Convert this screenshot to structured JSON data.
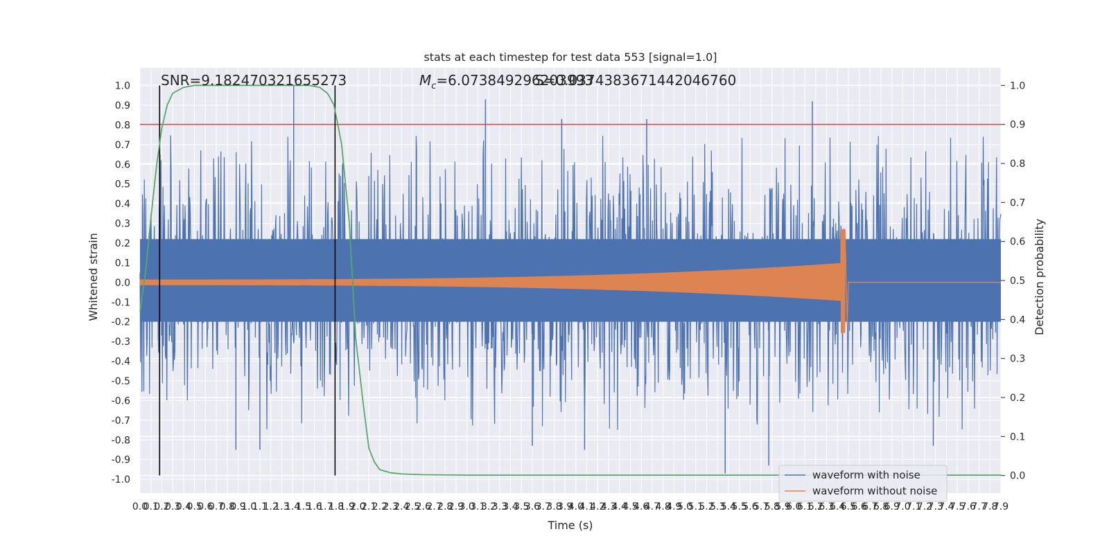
{
  "chart_data": {
    "type": "line",
    "title": "stats at each timestep for test data 553 [signal=1.0]",
    "xlabel": "Time (s)",
    "ylabel_left": "Whitened strain",
    "ylabel_right": "Detection probability",
    "xlim": [
      0.0,
      7.9
    ],
    "ylim_left": [
      -1.07,
      1.09
    ],
    "ylim_right": [
      -0.045,
      1.045
    ],
    "x_tick_step": 0.1,
    "x_tick_count": 80,
    "y_left_ticks": [
      "-1.0",
      "-0.9",
      "-0.8",
      "-0.7",
      "-0.6",
      "-0.5",
      "-0.4",
      "-0.3",
      "-0.2",
      "-0.1",
      "0.0",
      "0.1",
      "0.2",
      "0.3",
      "0.4",
      "0.5",
      "0.6",
      "0.7",
      "0.8",
      "0.9",
      "1.0"
    ],
    "y_right_ticks": [
      "0.0",
      "0.1",
      "0.2",
      "0.3",
      "0.4",
      "0.5",
      "0.6",
      "0.7",
      "0.8",
      "0.9",
      "1.0"
    ],
    "annotations": {
      "snr": "SNR=9.182470321655273",
      "mc_symbol": "M",
      "mc_subscript": "c",
      "mc_value": "=6.073849296203993",
      "overlap": "S=0.0374383671442046760"
    },
    "threshold_line": {
      "axis": "right",
      "value": 0.9,
      "color": "#c44e52"
    },
    "detection_window": {
      "x_start": 0.18,
      "x_end": 1.79,
      "color": "#000000"
    },
    "series": [
      {
        "name": "waveform with noise",
        "axis": "left",
        "color": "#4c72b0",
        "x_range": [
          0.0,
          7.9
        ],
        "noise_level": 0.26,
        "spikes": [
          {
            "x": 1.41,
            "y": 1.0
          },
          {
            "x": 3.17,
            "y": 0.93
          },
          {
            "x": 6.17,
            "y": 0.92
          },
          {
            "x": 3.87,
            "y": 0.83
          },
          {
            "x": 4.65,
            "y": 0.83
          },
          {
            "x": 1.1,
            "y": -0.85
          },
          {
            "x": 0.88,
            "y": -0.85
          },
          {
            "x": 5.37,
            "y": -0.97
          },
          {
            "x": 5.77,
            "y": -0.93
          },
          {
            "x": 4.08,
            "y": -0.85
          },
          {
            "x": 3.6,
            "y": -0.83
          },
          {
            "x": 7.28,
            "y": -0.83
          }
        ]
      },
      {
        "name": "waveform without noise",
        "axis": "left",
        "color": "#dd8452",
        "chirp_start": 0.0,
        "chirp_end": 6.47,
        "amplitude_start": 0.015,
        "amplitude_end": 0.1,
        "peak": 0.27
      },
      {
        "name": "detection probability",
        "axis": "right",
        "color": "#55a868",
        "x": [
          0.0,
          0.05,
          0.1,
          0.15,
          0.2,
          0.25,
          0.3,
          0.4,
          0.5,
          0.6,
          0.8,
          1.0,
          1.2,
          1.4,
          1.55,
          1.65,
          1.72,
          1.78,
          1.85,
          1.92,
          1.98,
          2.05,
          2.1,
          2.15,
          2.2,
          2.3,
          2.4,
          2.6,
          3.0,
          4.0,
          5.0,
          6.0,
          7.0,
          7.9
        ],
        "y": [
          0.42,
          0.52,
          0.66,
          0.79,
          0.89,
          0.95,
          0.98,
          0.995,
          1.0,
          1.0,
          1.0,
          1.0,
          1.0,
          1.0,
          1.0,
          0.995,
          0.98,
          0.95,
          0.85,
          0.65,
          0.35,
          0.18,
          0.07,
          0.035,
          0.015,
          0.007,
          0.004,
          0.002,
          0.001,
          0.001,
          0.001,
          0.001,
          0.001,
          0.001
        ]
      }
    ],
    "legend": {
      "placement": "bottom-right",
      "entries": [
        {
          "label": "waveform with noise",
          "color": "#4c72b0"
        },
        {
          "label": "waveform without noise",
          "color": "#dd8452"
        }
      ]
    }
  }
}
